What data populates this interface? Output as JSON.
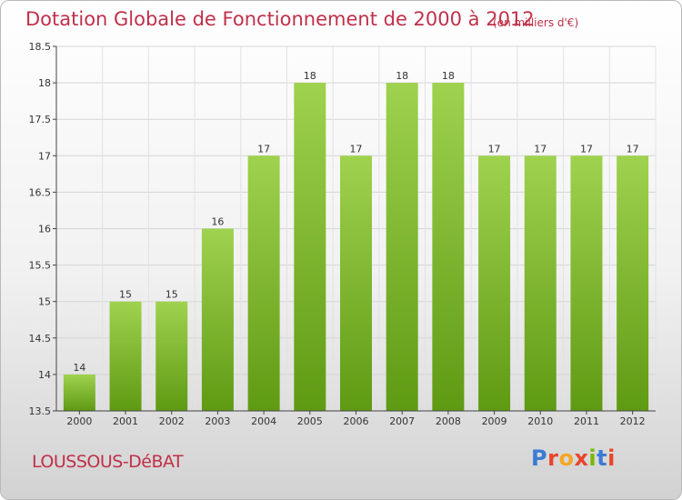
{
  "header": {
    "title": "Dotation Globale de Fonctionnement de 2000 à 2012",
    "unit": "(en milliers d'€)"
  },
  "footer": {
    "commune": "LOUSSOUS-DéBAT",
    "brand_letters": [
      "P",
      "r",
      "o",
      "x",
      "i",
      "t",
      "i"
    ],
    "brand_colors": [
      "#3b7bd4",
      "#e8452c",
      "#f5a623",
      "#e8452c",
      "#7ab800",
      "#3b7bd4",
      "#e8452c"
    ]
  },
  "colors": {
    "bar_top": "#9fd24f",
    "bar_bottom": "#5f9a13",
    "text": "#c0304a",
    "axis": "#444444"
  },
  "chart_data": {
    "type": "bar",
    "title": "Dotation Globale de Fonctionnement de 2000 à 2012",
    "subtitle": "(en milliers d'€)",
    "categories": [
      "2000",
      "2001",
      "2002",
      "2003",
      "2004",
      "2005",
      "2006",
      "2007",
      "2008",
      "2009",
      "2010",
      "2011",
      "2012"
    ],
    "values": [
      14,
      15,
      15,
      16,
      17,
      18,
      17,
      18,
      18,
      17,
      17,
      17,
      17
    ],
    "data_labels": [
      "14",
      "15",
      "15",
      "16",
      "17",
      "18",
      "17",
      "18",
      "18",
      "17",
      "17",
      "17",
      "17"
    ],
    "ylim": [
      13.5,
      18.5
    ],
    "yticks": [
      13.5,
      14,
      14.5,
      15,
      15.5,
      16,
      16.5,
      17,
      17.5,
      18,
      18.5
    ],
    "ytick_labels": [
      "13.5",
      "14",
      "14.5",
      "15",
      "15.5",
      "16",
      "16.5",
      "17",
      "17.5",
      "18",
      "18.5"
    ],
    "grid": true,
    "legend": "none"
  }
}
